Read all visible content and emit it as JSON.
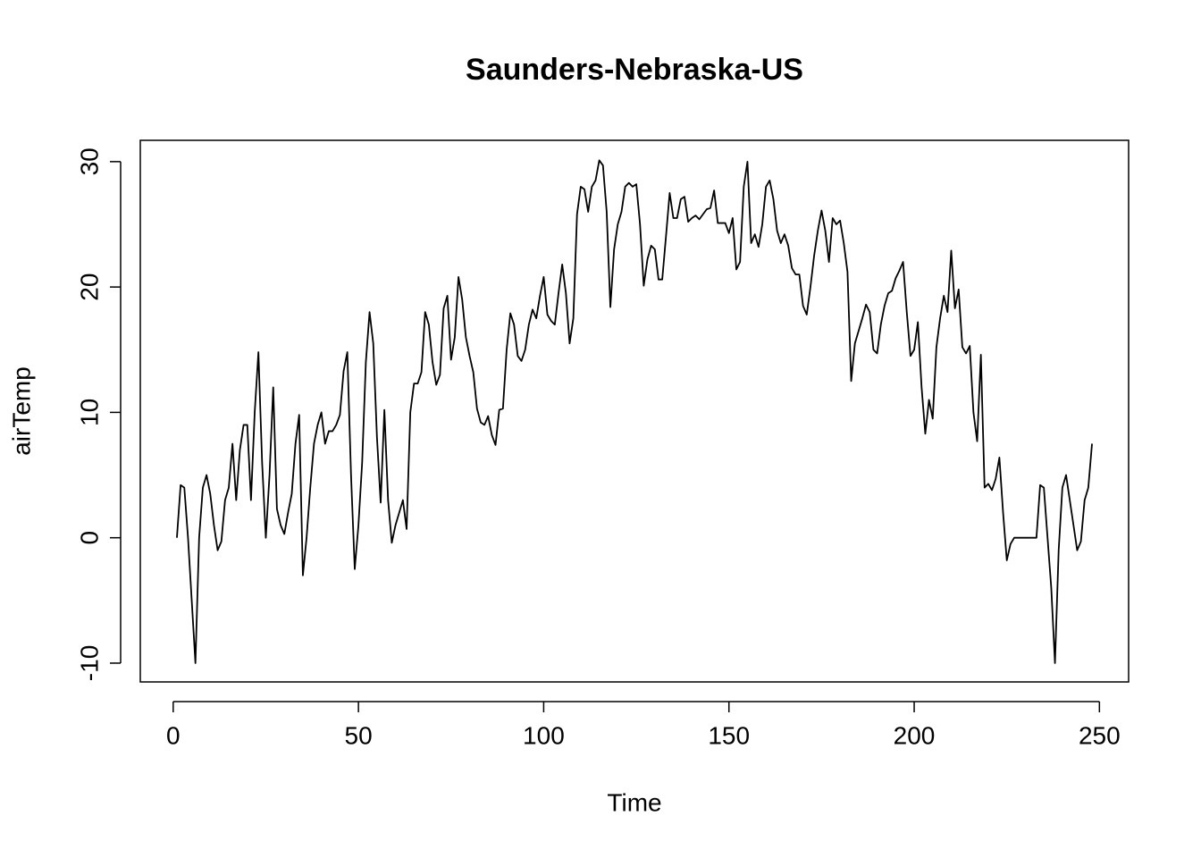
{
  "chart_data": {
    "type": "line",
    "title": "Saunders-Nebraska-US",
    "x_label": "Time",
    "y_label": "airTemp",
    "x": [
      1,
      2,
      3,
      4,
      5,
      6,
      7,
      8,
      9,
      10,
      11,
      12,
      13,
      14,
      15,
      16,
      17,
      18,
      19,
      20,
      21,
      22,
      23,
      24,
      25,
      26,
      27,
      28,
      29,
      30,
      31,
      32,
      33,
      34,
      35,
      36,
      37,
      38,
      39,
      40,
      41,
      42,
      43,
      44,
      45,
      46,
      47,
      48,
      49,
      50,
      51,
      52,
      53,
      54,
      55,
      56,
      57,
      58,
      59,
      60,
      61,
      62,
      63,
      64,
      65,
      66,
      67,
      68,
      69,
      70,
      71,
      72,
      73,
      74,
      75,
      76,
      77,
      78,
      79,
      80,
      81,
      82,
      83,
      84,
      85,
      86,
      87,
      88,
      89,
      90,
      91,
      92,
      93,
      94,
      95,
      96,
      97,
      98,
      99,
      100,
      101,
      102,
      103,
      104,
      105,
      106,
      107,
      108,
      109,
      110,
      111,
      112,
      113,
      114,
      115,
      116,
      117,
      118,
      119,
      120,
      121,
      122,
      123,
      124,
      125,
      126,
      127,
      128,
      129,
      130,
      131,
      132,
      133,
      134,
      135,
      136,
      137,
      138,
      139,
      140,
      141,
      142,
      143,
      144,
      145,
      146,
      147,
      148,
      149,
      150,
      151,
      152,
      153,
      154,
      155,
      156,
      157,
      158,
      159,
      160,
      161,
      162,
      163,
      164,
      165,
      166,
      167,
      168,
      169,
      170,
      171,
      172,
      173,
      174,
      175,
      176,
      177,
      178,
      179,
      180,
      181,
      182,
      183,
      184,
      185,
      186,
      187,
      188,
      189,
      190,
      191,
      192,
      193,
      194,
      195,
      196,
      197,
      198,
      199,
      200,
      201,
      202,
      203,
      204,
      205,
      206,
      207,
      208,
      209,
      210,
      211,
      212,
      213,
      214,
      215,
      216,
      217,
      218,
      219,
      220,
      221,
      222,
      223,
      224,
      225,
      226,
      227,
      228,
      229,
      230,
      231,
      232,
      233,
      234,
      235,
      236,
      237,
      238,
      239,
      240,
      241,
      242,
      243,
      244,
      245,
      246,
      247,
      248
    ],
    "series": [
      {
        "color": "#000000",
        "values": [
          0,
          4.2,
          4,
          0,
          -5,
          -10,
          0,
          4,
          5,
          3.5,
          1,
          -1,
          -0.3,
          3,
          4,
          7.5,
          3,
          7,
          9,
          9,
          3,
          10,
          14.8,
          6,
          0,
          5,
          12,
          2.3,
          1,
          0.3,
          2,
          3.5,
          7.5,
          9.8,
          -3,
          0,
          4,
          7.5,
          9,
          10,
          7.5,
          8.5,
          8.5,
          9,
          9.8,
          13.3,
          14.8,
          5,
          -2.5,
          1,
          6,
          14,
          18,
          15.5,
          8,
          2.8,
          10.2,
          3,
          -0.4,
          1,
          2,
          3,
          0.7,
          10,
          12.3,
          12.3,
          13.2,
          18,
          17,
          14,
          12.2,
          13,
          18.3,
          19.3,
          14.2,
          16,
          20.8,
          19,
          16,
          14.5,
          13.2,
          10.3,
          9.2,
          9,
          9.7,
          8.2,
          7.4,
          10.2,
          10.3,
          15,
          17.9,
          17,
          14.5,
          14.1,
          15,
          17,
          18.2,
          17.5,
          19.3,
          20.8,
          17.8,
          17.3,
          17,
          19.5,
          21.8,
          19.5,
          15.5,
          17.5,
          25.8,
          28,
          27.8,
          26,
          28,
          28.5,
          30.1,
          29.7,
          26,
          18.4,
          23,
          25,
          26,
          28,
          28.3,
          28,
          28.2,
          25,
          20.1,
          22.2,
          23.3,
          23,
          20.6,
          20.6,
          24,
          27.5,
          25.5,
          25.5,
          27,
          27.2,
          25.2,
          25.5,
          25.7,
          25.4,
          25.8,
          26.2,
          26.3,
          27.7,
          25.1,
          25.1,
          25.1,
          24.3,
          25.5,
          21.4,
          22,
          28,
          30,
          23.5,
          24.2,
          23.2,
          25,
          28,
          28.5,
          27,
          24.5,
          23.5,
          24.2,
          23.3,
          21.5,
          21,
          21,
          18.5,
          17.8,
          20,
          22.5,
          24.5,
          26.1,
          24.5,
          22,
          25.5,
          25,
          25.3,
          23.5,
          21.2,
          12.5,
          15.5,
          16.5,
          17.5,
          18.6,
          18,
          15,
          14.7,
          17,
          18.5,
          19.5,
          19.7,
          20.7,
          21.3,
          22,
          18,
          14.5,
          15,
          17.2,
          12,
          8.3,
          11,
          9.5,
          15.2,
          17.5,
          19.3,
          18,
          22.9,
          18.3,
          19.8,
          15.2,
          14.7,
          15.3,
          10,
          7.7,
          14.6,
          4,
          4.3,
          3.8,
          4.7,
          6.4,
          2,
          -1.8,
          -0.5,
          0,
          0,
          0,
          0,
          0,
          0,
          0,
          4.2,
          4,
          0,
          -4,
          -10,
          -1,
          4,
          5,
          3,
          1,
          -1,
          -0.3,
          3,
          4,
          7.5
        ]
      }
    ],
    "xlim": [
      -8.88,
      257.88
    ],
    "ylim": [
      -11.5,
      31.7
    ],
    "xticks": [
      0,
      50,
      100,
      150,
      200,
      250
    ],
    "yticks": [
      -10,
      0,
      10,
      20,
      30
    ]
  }
}
